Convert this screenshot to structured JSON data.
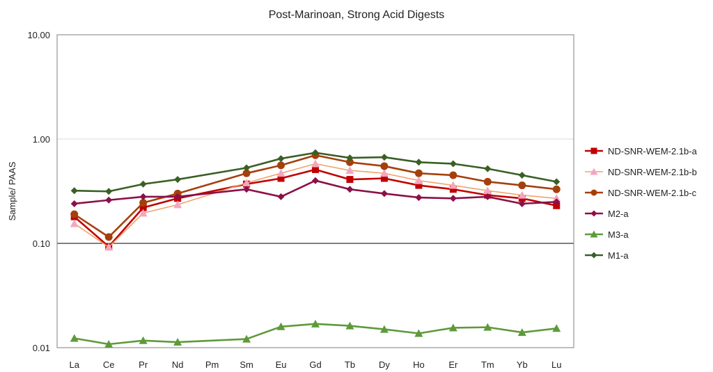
{
  "chart_data": {
    "type": "line",
    "title": "Post-Marinoan, Strong Acid Digests",
    "xlabel": "",
    "ylabel": "Sample/ PAAS",
    "yscale": "log",
    "ylim": [
      0.01,
      10
    ],
    "yticks": [
      "0.01",
      "0.10",
      "1.00",
      "10.00"
    ],
    "grid": true,
    "legend_position": "right",
    "categories": [
      "La",
      "Ce",
      "Pr",
      "Nd",
      "Pm",
      "Sm",
      "Eu",
      "Gd",
      "Tb",
      "Dy",
      "Ho",
      "Er",
      "Tm",
      "Yb",
      "Lu"
    ],
    "series": [
      {
        "name": "ND-SNR-WEM-2.1b-a",
        "color": "#C00000",
        "marker": "square",
        "values": [
          0.18,
          0.093,
          0.22,
          0.27,
          null,
          0.37,
          0.42,
          0.51,
          0.41,
          0.42,
          0.36,
          0.33,
          0.29,
          0.27,
          0.23
        ]
      },
      {
        "name": "ND-SNR-WEM-2.1b-b",
        "color": "#F4A6C0",
        "line_color": "#F2A36B",
        "marker": "triangle",
        "values": [
          0.155,
          0.092,
          0.195,
          0.235,
          null,
          0.38,
          0.47,
          0.58,
          0.5,
          0.47,
          0.4,
          0.36,
          0.32,
          0.29,
          0.27
        ]
      },
      {
        "name": "ND-SNR-WEM-2.1b-c",
        "color": "#A5400C",
        "marker": "circle",
        "values": [
          0.19,
          0.115,
          0.245,
          0.3,
          null,
          0.47,
          0.56,
          0.7,
          0.6,
          0.55,
          0.47,
          0.45,
          0.39,
          0.36,
          0.33
        ]
      },
      {
        "name": "M2-a",
        "color": "#8C1048",
        "marker": "diamond",
        "values": [
          0.24,
          0.26,
          0.28,
          0.28,
          null,
          0.33,
          0.28,
          0.4,
          0.33,
          0.3,
          0.275,
          0.27,
          0.28,
          0.24,
          0.25
        ]
      },
      {
        "name": "M3-a",
        "color": "#5E9A3A",
        "marker": "triangle",
        "values": [
          0.0123,
          0.0108,
          0.0117,
          0.0113,
          null,
          0.0121,
          0.0159,
          0.0169,
          0.0162,
          0.015,
          0.0137,
          0.0155,
          0.0157,
          0.014,
          0.0153
        ]
      },
      {
        "name": "M1-a",
        "color": "#3A5F24",
        "marker": "diamond",
        "values": [
          0.32,
          0.315,
          0.37,
          0.41,
          null,
          0.53,
          0.65,
          0.74,
          0.66,
          0.67,
          0.6,
          0.58,
          0.52,
          0.45,
          0.39
        ]
      }
    ]
  }
}
